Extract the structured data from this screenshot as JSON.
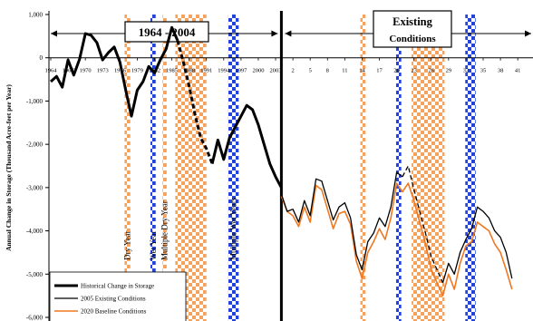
{
  "chart_data": {
    "type": "line",
    "ylabel": "Annual Change in Storage (Thousand Acre-feet per Year)",
    "ylim": [
      -6000,
      1000
    ],
    "yticks": [
      1000,
      0,
      -1000,
      -2000,
      -3000,
      -4000,
      -5000,
      -6000
    ],
    "ytick_labels": [
      "1,000",
      "0",
      "-1,000",
      "-2,000",
      "-3,000",
      "-4,000",
      "-5,000",
      "-6,000"
    ],
    "xlim": [
      0,
      84
    ],
    "divider_x": 40,
    "xtick_labels": [
      {
        "x": 0,
        "label": "1964"
      },
      {
        "x": 3,
        "label": "1967"
      },
      {
        "x": 6,
        "label": "1970"
      },
      {
        "x": 9,
        "label": "1973"
      },
      {
        "x": 12,
        "label": "1976"
      },
      {
        "x": 15,
        "label": "1979"
      },
      {
        "x": 18,
        "label": "1982"
      },
      {
        "x": 21,
        "label": "1985"
      },
      {
        "x": 24,
        "label": "1988"
      },
      {
        "x": 27,
        "label": "1991"
      },
      {
        "x": 30,
        "label": "1994"
      },
      {
        "x": 33,
        "label": "1997"
      },
      {
        "x": 36,
        "label": "2000"
      },
      {
        "x": 39,
        "label": "2003"
      },
      {
        "x": 42,
        "label": "2"
      },
      {
        "x": 45,
        "label": "5"
      },
      {
        "x": 48,
        "label": "8"
      },
      {
        "x": 51,
        "label": "11"
      },
      {
        "x": 54,
        "label": "14"
      },
      {
        "x": 57,
        "label": "17"
      },
      {
        "x": 60,
        "label": "20"
      },
      {
        "x": 63,
        "label": "23"
      },
      {
        "x": 66,
        "label": "26"
      },
      {
        "x": 69,
        "label": "29"
      },
      {
        "x": 72,
        "label": "32"
      },
      {
        "x": 75,
        "label": "35"
      },
      {
        "x": 78,
        "label": "38"
      },
      {
        "x": 81,
        "label": "41"
      }
    ],
    "periods": [
      {
        "label": "1964 - 2004",
        "x_start": 0,
        "x_end": 40
      },
      {
        "label": "Existing Conditions",
        "x_start": 40,
        "x_end": 84
      }
    ],
    "shaded_bands": [
      {
        "kind": "dry",
        "x_start": 12.8,
        "x_end": 13.8,
        "color": "#f5a25d",
        "label": "Dry Year"
      },
      {
        "kind": "wet",
        "x_start": 17.3,
        "x_end": 18.2,
        "color": "#2244dd",
        "label": "Wet Year"
      },
      {
        "kind": "dry",
        "x_start": 19.4,
        "x_end": 20.1,
        "color": "#f5a25d",
        "label": "Multiple Dry Year"
      },
      {
        "kind": "dry",
        "x_start": 21.6,
        "x_end": 27.0,
        "color": "#f5a25d",
        "label": ""
      },
      {
        "kind": "wet",
        "x_start": 30.8,
        "x_end": 32.6,
        "color": "#2244dd",
        "label": "Multiple Wet Years"
      },
      {
        "kind": "dry",
        "x_start": 53.7,
        "x_end": 54.6,
        "color": "#f5a25d",
        "label": ""
      },
      {
        "kind": "wet",
        "x_start": 59.9,
        "x_end": 60.8,
        "color": "#2244dd",
        "label": ""
      },
      {
        "kind": "dry",
        "x_start": 62.6,
        "x_end": 68.3,
        "color": "#f5a25d",
        "label": ""
      },
      {
        "kind": "wet",
        "x_start": 71.9,
        "x_end": 73.7,
        "color": "#2244dd",
        "label": ""
      }
    ],
    "series": [
      {
        "name": "Historical Change in Storage",
        "color": "#000000",
        "width": 3,
        "segments": [
          {
            "dashed": false,
            "points": [
              [
                0,
                -550
              ],
              [
                1,
                -430
              ],
              [
                2,
                -680
              ],
              [
                3,
                -50
              ],
              [
                4,
                -400
              ],
              [
                5,
                -30
              ],
              [
                6,
                560
              ],
              [
                7,
                520
              ],
              [
                8,
                350
              ],
              [
                9,
                -50
              ],
              [
                10,
                120
              ],
              [
                11,
                250
              ],
              [
                12,
                -100
              ],
              [
                13,
                -750
              ],
              [
                14,
                -1350
              ],
              [
                15,
                -750
              ],
              [
                16,
                -550
              ],
              [
                17,
                -200
              ],
              [
                18,
                -350
              ],
              [
                19,
                -50
              ],
              [
                20,
                200
              ],
              [
                21,
                700
              ],
              [
                22,
                400
              ]
            ]
          },
          {
            "dashed": true,
            "points": [
              [
                22,
                400
              ],
              [
                23,
                -100
              ],
              [
                24,
                -650
              ],
              [
                25,
                -1300
              ],
              [
                26,
                -1850
              ],
              [
                27,
                -2100
              ],
              [
                28,
                -2450
              ]
            ]
          },
          {
            "dashed": false,
            "points": [
              [
                28,
                -2450
              ],
              [
                29,
                -1900
              ],
              [
                30,
                -2350
              ],
              [
                31,
                -1850
              ],
              [
                32,
                -1600
              ],
              [
                33,
                -1350
              ],
              [
                34,
                -1100
              ],
              [
                35,
                -1200
              ],
              [
                36,
                -1550
              ],
              [
                37,
                -2000
              ],
              [
                38,
                -2450
              ],
              [
                39,
                -2750
              ],
              [
                40,
                -3000
              ]
            ]
          }
        ]
      },
      {
        "name": "2005 Existing Conditions",
        "color": "#000000",
        "width": 1.3,
        "segments": [
          {
            "dashed": false,
            "points": [
              [
                40,
                -3150
              ],
              [
                41,
                -3550
              ],
              [
                42,
                -3500
              ],
              [
                43,
                -3800
              ],
              [
                44,
                -3300
              ],
              [
                45,
                -3650
              ],
              [
                46,
                -2800
              ],
              [
                47,
                -2850
              ],
              [
                48,
                -3300
              ],
              [
                49,
                -3750
              ],
              [
                50,
                -3450
              ],
              [
                51,
                -3350
              ],
              [
                52,
                -3700
              ],
              [
                53,
                -4550
              ],
              [
                54,
                -4900
              ],
              [
                55,
                -4250
              ],
              [
                56,
                -4050
              ],
              [
                57,
                -3700
              ],
              [
                58,
                -3900
              ],
              [
                59,
                -3450
              ],
              [
                60,
                -2650
              ],
              [
                61,
                -2750
              ]
            ]
          },
          {
            "dashed": true,
            "points": [
              [
                61,
                -2750
              ],
              [
                62,
                -2500
              ],
              [
                63,
                -3050
              ],
              [
                64,
                -3550
              ],
              [
                65,
                -4050
              ],
              [
                66,
                -4600
              ],
              [
                67,
                -4900
              ],
              [
                68,
                -5200
              ]
            ]
          },
          {
            "dashed": false,
            "points": [
              [
                68,
                -5200
              ],
              [
                69,
                -4750
              ],
              [
                70,
                -5000
              ],
              [
                71,
                -4500
              ],
              [
                72,
                -4200
              ],
              [
                73,
                -3950
              ],
              [
                74,
                -3450
              ],
              [
                75,
                -3550
              ],
              [
                76,
                -3700
              ],
              [
                77,
                -4000
              ],
              [
                78,
                -4150
              ],
              [
                79,
                -4500
              ],
              [
                80,
                -5100
              ]
            ]
          }
        ]
      },
      {
        "name": "2020 Baseline Conditions",
        "color": "#f07820",
        "width": 1.6,
        "segments": [
          {
            "dashed": false,
            "points": [
              [
                40,
                -3200
              ],
              [
                41,
                -3550
              ],
              [
                42,
                -3650
              ],
              [
                43,
                -3900
              ],
              [
                44,
                -3450
              ],
              [
                45,
                -3800
              ],
              [
                46,
                -2950
              ],
              [
                47,
                -3050
              ],
              [
                48,
                -3500
              ],
              [
                49,
                -3950
              ],
              [
                50,
                -3600
              ],
              [
                51,
                -3550
              ],
              [
                52,
                -3850
              ],
              [
                53,
                -4700
              ],
              [
                54,
                -5100
              ],
              [
                55,
                -4500
              ],
              [
                56,
                -4250
              ],
              [
                57,
                -3950
              ],
              [
                58,
                -4200
              ],
              [
                59,
                -3700
              ],
              [
                60,
                -2900
              ],
              [
                61,
                -3100
              ],
              [
                62,
                -2900
              ],
              [
                63,
                -3300
              ],
              [
                64,
                -3800
              ],
              [
                65,
                -4300
              ],
              [
                66,
                -4900
              ],
              [
                67,
                -5200
              ],
              [
                68,
                -5500
              ],
              [
                69,
                -5000
              ],
              [
                70,
                -5350
              ],
              [
                71,
                -4750
              ],
              [
                72,
                -4350
              ],
              [
                73,
                -4250
              ],
              [
                74,
                -3800
              ],
              [
                75,
                -3900
              ],
              [
                76,
                -4000
              ],
              [
                77,
                -4300
              ],
              [
                78,
                -4500
              ],
              [
                79,
                -4900
              ],
              [
                80,
                -5350
              ]
            ]
          }
        ]
      }
    ],
    "legend": {
      "placement": "bottom-left",
      "entries": [
        "Historical Change in Storage",
        "2005 Existing Conditions",
        "2020 Baseline Conditions"
      ]
    }
  }
}
